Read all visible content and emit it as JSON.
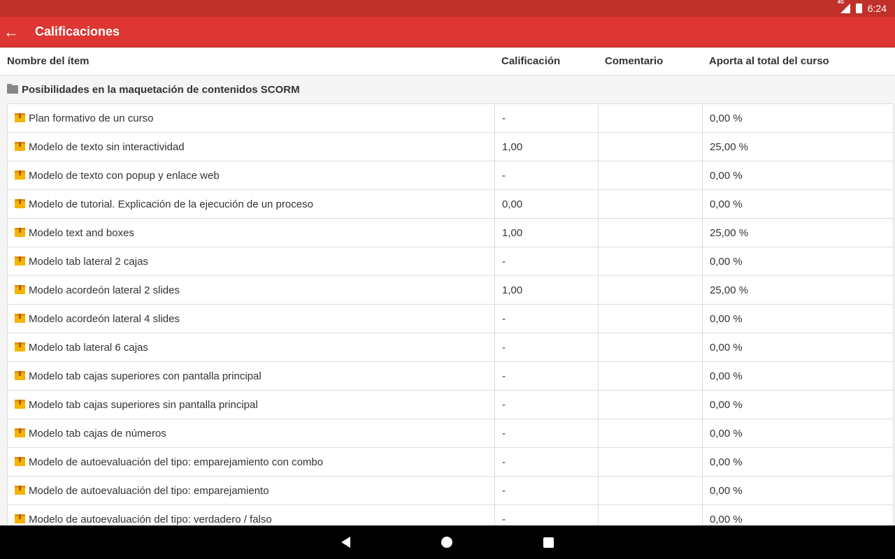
{
  "status": {
    "time": "6:24",
    "network": "4G"
  },
  "appbar": {
    "title": "Calificaciones"
  },
  "columns": [
    "Nombre del ítem",
    "Calificación",
    "Comentario",
    "Aporta al total del curso"
  ],
  "group": "Posibilidades en la maquetación de contenidos SCORM",
  "rows": [
    {
      "name": "Plan formativo de un curso",
      "grade": "-",
      "comment": "",
      "contrib": "0,00 %"
    },
    {
      "name": "Modelo de texto sin interactividad",
      "grade": "1,00",
      "comment": "",
      "contrib": "25,00 %"
    },
    {
      "name": "Modelo de texto con popup y enlace web",
      "grade": "-",
      "comment": "",
      "contrib": "0,00 %"
    },
    {
      "name": "Modelo de tutorial. Explicación de la ejecución de un proceso",
      "grade": "0,00",
      "comment": "",
      "contrib": "0,00 %"
    },
    {
      "name": "Modelo text and boxes",
      "grade": "1,00",
      "comment": "",
      "contrib": "25,00 %"
    },
    {
      "name": "Modelo tab lateral 2 cajas",
      "grade": "-",
      "comment": "",
      "contrib": "0,00 %"
    },
    {
      "name": "Modelo acordeón lateral 2 slides",
      "grade": "1,00",
      "comment": "",
      "contrib": "25,00 %"
    },
    {
      "name": "Modelo acordeón lateral 4 slides",
      "grade": "-",
      "comment": "",
      "contrib": "0,00 %"
    },
    {
      "name": "Modelo tab lateral 6 cajas",
      "grade": "-",
      "comment": "",
      "contrib": "0,00 %"
    },
    {
      "name": "Modelo tab cajas superiores con pantalla principal",
      "grade": "-",
      "comment": "",
      "contrib": "0,00 %"
    },
    {
      "name": "Modelo tab cajas superiores sin pantalla principal",
      "grade": "-",
      "comment": "",
      "contrib": "0,00 %"
    },
    {
      "name": "Modelo tab cajas de números",
      "grade": "-",
      "comment": "",
      "contrib": "0,00 %"
    },
    {
      "name": "Modelo de autoevaluación del tipo: emparejamiento con combo",
      "grade": "-",
      "comment": "",
      "contrib": "0,00 %"
    },
    {
      "name": "Modelo de autoevaluación del tipo: emparejamiento",
      "grade": "-",
      "comment": "",
      "contrib": "0,00 %"
    },
    {
      "name": "Modelo de autoevaluación del tipo: verdadero / falso",
      "grade": "-",
      "comment": "",
      "contrib": "0,00 %"
    }
  ]
}
